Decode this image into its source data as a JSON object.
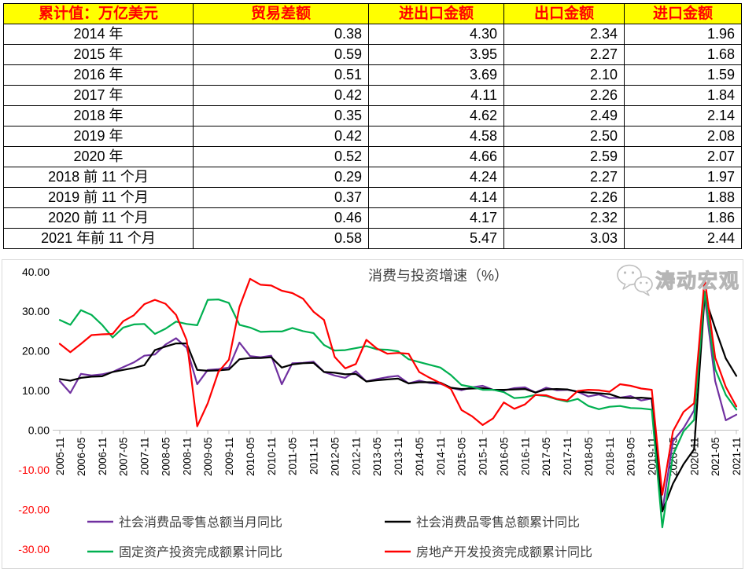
{
  "table": {
    "headers": [
      "累计值：万亿美元",
      "贸易差额",
      "进出口金额",
      "出口金额",
      "进口金额"
    ],
    "rows": [
      [
        "2014 年",
        "0.38",
        "4.30",
        "2.34",
        "1.96"
      ],
      [
        "2015 年",
        "0.59",
        "3.95",
        "2.27",
        "1.68"
      ],
      [
        "2016 年",
        "0.51",
        "3.69",
        "2.10",
        "1.59"
      ],
      [
        "2017 年",
        "0.42",
        "4.11",
        "2.26",
        "1.84"
      ],
      [
        "2018 年",
        "0.35",
        "4.62",
        "2.49",
        "2.14"
      ],
      [
        "2019 年",
        "0.42",
        "4.58",
        "2.50",
        "2.08"
      ],
      [
        "2020 年",
        "0.52",
        "4.66",
        "2.59",
        "2.07"
      ],
      [
        "2018 前 11 个月",
        "0.29",
        "4.24",
        "2.27",
        "1.97"
      ],
      [
        "2019 前 11 个月",
        "0.37",
        "4.14",
        "2.26",
        "1.88"
      ],
      [
        "2020 前 11 个月",
        "0.46",
        "4.17",
        "2.32",
        "1.86"
      ],
      [
        "2021 年前 11 个月",
        "0.58",
        "5.47",
        "3.03",
        "2.44"
      ]
    ],
    "header_bg": "#FFFF00",
    "header_color": "#FF0000",
    "border_color": "#000000"
  },
  "chart_data": {
    "type": "line",
    "title": "消费与投资增速（%）",
    "ylim": [
      -30,
      40
    ],
    "grid": "zero-line-only",
    "legend_position": "bottom",
    "y_tick_labels": [
      "40.00",
      "30.00",
      "20.00",
      "10.00",
      "0.00",
      "-10.00",
      "-20.00",
      "-30.00"
    ],
    "negative_tick_color": "#FF0000",
    "x": [
      "2005-11",
      "2006-02",
      "2006-05",
      "2006-08",
      "2006-11",
      "2007-02",
      "2007-05",
      "2007-08",
      "2007-11",
      "2008-02",
      "2008-05",
      "2008-08",
      "2008-11",
      "2009-02",
      "2009-05",
      "2009-08",
      "2009-11",
      "2010-02",
      "2010-05",
      "2010-08",
      "2010-11",
      "2011-02",
      "2011-05",
      "2011-08",
      "2011-11",
      "2012-02",
      "2012-05",
      "2012-08",
      "2012-11",
      "2013-02",
      "2013-05",
      "2013-08",
      "2013-11",
      "2014-02",
      "2014-05",
      "2014-08",
      "2014-11",
      "2015-02",
      "2015-05",
      "2015-08",
      "2015-11",
      "2016-02",
      "2016-05",
      "2016-08",
      "2016-11",
      "2017-02",
      "2017-05",
      "2017-08",
      "2017-11",
      "2018-02",
      "2018-05",
      "2018-08",
      "2018-11",
      "2019-02",
      "2019-05",
      "2019-08",
      "2019-11",
      "2020-02",
      "2020-05",
      "2020-08",
      "2020-11",
      "2021-02",
      "2021-05",
      "2021-08",
      "2021-11"
    ],
    "x_tick_labels": [
      "2005-11",
      "2006-05",
      "2006-11",
      "2007-05",
      "2007-11",
      "2008-05",
      "2008-11",
      "2009-05",
      "2009-11",
      "2010-05",
      "2010-11",
      "2011-05",
      "2011-11",
      "2012-05",
      "2012-11",
      "2013-05",
      "2013-11",
      "2014-05",
      "2014-11",
      "2015-05",
      "2015-11",
      "2016-05",
      "2016-11",
      "2017-05",
      "2017-11",
      "2018-05",
      "2018-11",
      "2019-05",
      "2019-11",
      "2020-05",
      "2020-11",
      "2021-05",
      "2021-11"
    ],
    "series": [
      {
        "key": "retail-monthly-yoy",
        "name": "社会消费品零售总额当月同比",
        "color": "#7030A0",
        "values": [
          12.4,
          9.4,
          14.2,
          13.8,
          14.1,
          14.7,
          15.9,
          17.1,
          18.8,
          19.1,
          21.6,
          23.2,
          20.8,
          11.6,
          15.2,
          15.4,
          15.8,
          22.1,
          18.7,
          18.4,
          18.8,
          11.6,
          16.9,
          17.0,
          17.3,
          14.7,
          13.8,
          13.2,
          14.9,
          12.3,
          12.9,
          13.4,
          13.7,
          11.8,
          12.5,
          11.9,
          11.7,
          10.7,
          10.1,
          10.8,
          11.2,
          10.2,
          10.0,
          10.6,
          10.8,
          9.5,
          10.7,
          10.1,
          10.2,
          9.7,
          8.5,
          9.0,
          8.1,
          8.2,
          8.6,
          7.5,
          8.0,
          -20.5,
          -2.8,
          0.5,
          5.0,
          33.8,
          12.4,
          2.5,
          3.9
        ]
      },
      {
        "key": "retail-cumulative-yoy",
        "name": "社会消费品零售总额累计同比",
        "color": "#000000",
        "values": [
          12.9,
          12.5,
          13.2,
          13.5,
          13.6,
          14.7,
          15.2,
          15.7,
          16.4,
          20.2,
          21.1,
          21.9,
          21.9,
          15.2,
          15.0,
          15.1,
          15.3,
          17.9,
          18.2,
          18.2,
          18.4,
          15.8,
          16.6,
          16.9,
          17.0,
          14.7,
          14.5,
          14.1,
          14.2,
          12.3,
          12.6,
          12.8,
          13.0,
          11.8,
          12.1,
          12.1,
          12.0,
          10.7,
          10.4,
          10.5,
          10.6,
          10.2,
          10.2,
          10.3,
          10.4,
          9.5,
          10.3,
          10.4,
          10.3,
          9.7,
          9.5,
          9.3,
          9.1,
          8.2,
          8.1,
          8.2,
          8.0,
          -20.5,
          -13.5,
          -8.6,
          -4.8,
          33.8,
          25.7,
          18.1,
          13.7
        ]
      },
      {
        "key": "fai-cumulative-yoy",
        "name": "固定资产投资完成额累计同比",
        "color": "#00B050",
        "values": [
          27.8,
          26.6,
          30.3,
          29.1,
          26.6,
          23.4,
          25.9,
          26.7,
          26.8,
          24.3,
          25.6,
          27.4,
          26.8,
          26.5,
          32.9,
          33.0,
          32.1,
          26.6,
          25.9,
          24.8,
          24.9,
          24.9,
          25.8,
          25.0,
          24.5,
          21.5,
          20.1,
          20.2,
          20.7,
          21.2,
          20.4,
          20.3,
          19.9,
          17.9,
          17.2,
          16.5,
          15.8,
          13.9,
          11.4,
          10.9,
          10.2,
          10.2,
          9.6,
          8.1,
          8.3,
          8.9,
          8.6,
          7.8,
          7.2,
          7.9,
          6.1,
          5.3,
          5.9,
          6.1,
          5.6,
          5.5,
          5.2,
          -24.5,
          -6.3,
          -0.3,
          2.6,
          35.0,
          15.4,
          8.9,
          5.2
        ]
      },
      {
        "key": "realestate-cumulative-yoy",
        "name": "房地产开发投资完成额累计同比",
        "color": "#FF0000",
        "values": [
          21.8,
          19.7,
          21.8,
          24.0,
          24.2,
          24.3,
          27.5,
          29.0,
          31.8,
          32.9,
          31.9,
          29.1,
          22.7,
          1.0,
          6.8,
          14.7,
          17.8,
          31.1,
          38.2,
          36.7,
          36.5,
          35.2,
          34.6,
          33.2,
          29.9,
          27.8,
          18.5,
          15.6,
          16.7,
          22.8,
          20.6,
          19.3,
          19.5,
          19.3,
          14.7,
          13.2,
          11.9,
          10.4,
          5.1,
          3.5,
          1.3,
          3.0,
          7.0,
          5.4,
          6.5,
          8.9,
          8.8,
          7.9,
          7.5,
          9.9,
          10.2,
          10.1,
          9.7,
          11.6,
          11.2,
          10.5,
          10.2,
          -16.3,
          -0.3,
          4.6,
          6.8,
          38.3,
          18.3,
          10.9,
          6.0
        ]
      }
    ]
  },
  "watermark": {
    "text": "涛动宏观",
    "icon": "wechat-icon",
    "color": "#b5b5b5"
  }
}
